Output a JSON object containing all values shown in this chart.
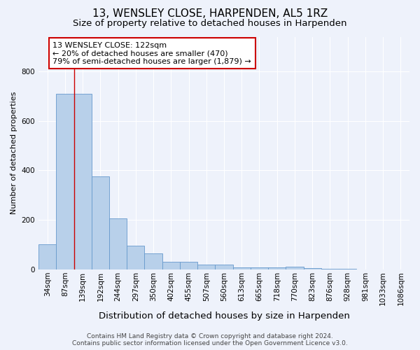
{
  "title": "13, WENSLEY CLOSE, HARPENDEN, AL5 1RZ",
  "subtitle": "Size of property relative to detached houses in Harpenden",
  "xlabel": "Distribution of detached houses by size in Harpenden",
  "ylabel": "Number of detached properties",
  "footer_line1": "Contains HM Land Registry data © Crown copyright and database right 2024.",
  "footer_line2": "Contains public sector information licensed under the Open Government Licence v3.0.",
  "bar_labels": [
    "34sqm",
    "87sqm",
    "139sqm",
    "192sqm",
    "244sqm",
    "297sqm",
    "350sqm",
    "402sqm",
    "455sqm",
    "507sqm",
    "560sqm",
    "613sqm",
    "665sqm",
    "718sqm",
    "770sqm",
    "823sqm",
    "876sqm",
    "928sqm",
    "981sqm",
    "1033sqm",
    "1086sqm"
  ],
  "bar_values": [
    100,
    710,
    710,
    375,
    205,
    95,
    65,
    30,
    30,
    18,
    20,
    8,
    7,
    7,
    10,
    5,
    2,
    2,
    0,
    0,
    0
  ],
  "bar_color": "#b8d0ea",
  "bar_edge_color": "#6699cc",
  "annotation_line1": "13 WENSLEY CLOSE: 122sqm",
  "annotation_line2": "← 20% of detached houses are smaller (470)",
  "annotation_line3": "79% of semi-detached houses are larger (1,879) →",
  "annotation_box_color": "#ffffff",
  "annotation_border_color": "#cc0000",
  "vertical_line_x": 1.5,
  "vertical_line_color": "#cc0000",
  "ylim": [
    0,
    940
  ],
  "background_color": "#eef2fb",
  "plot_bg_color": "#eef2fb",
  "grid_color": "#ffffff",
  "title_fontsize": 11,
  "subtitle_fontsize": 9.5,
  "xlabel_fontsize": 9.5,
  "ylabel_fontsize": 8,
  "tick_fontsize": 7.5,
  "annotation_fontsize": 8,
  "footer_fontsize": 6.5
}
